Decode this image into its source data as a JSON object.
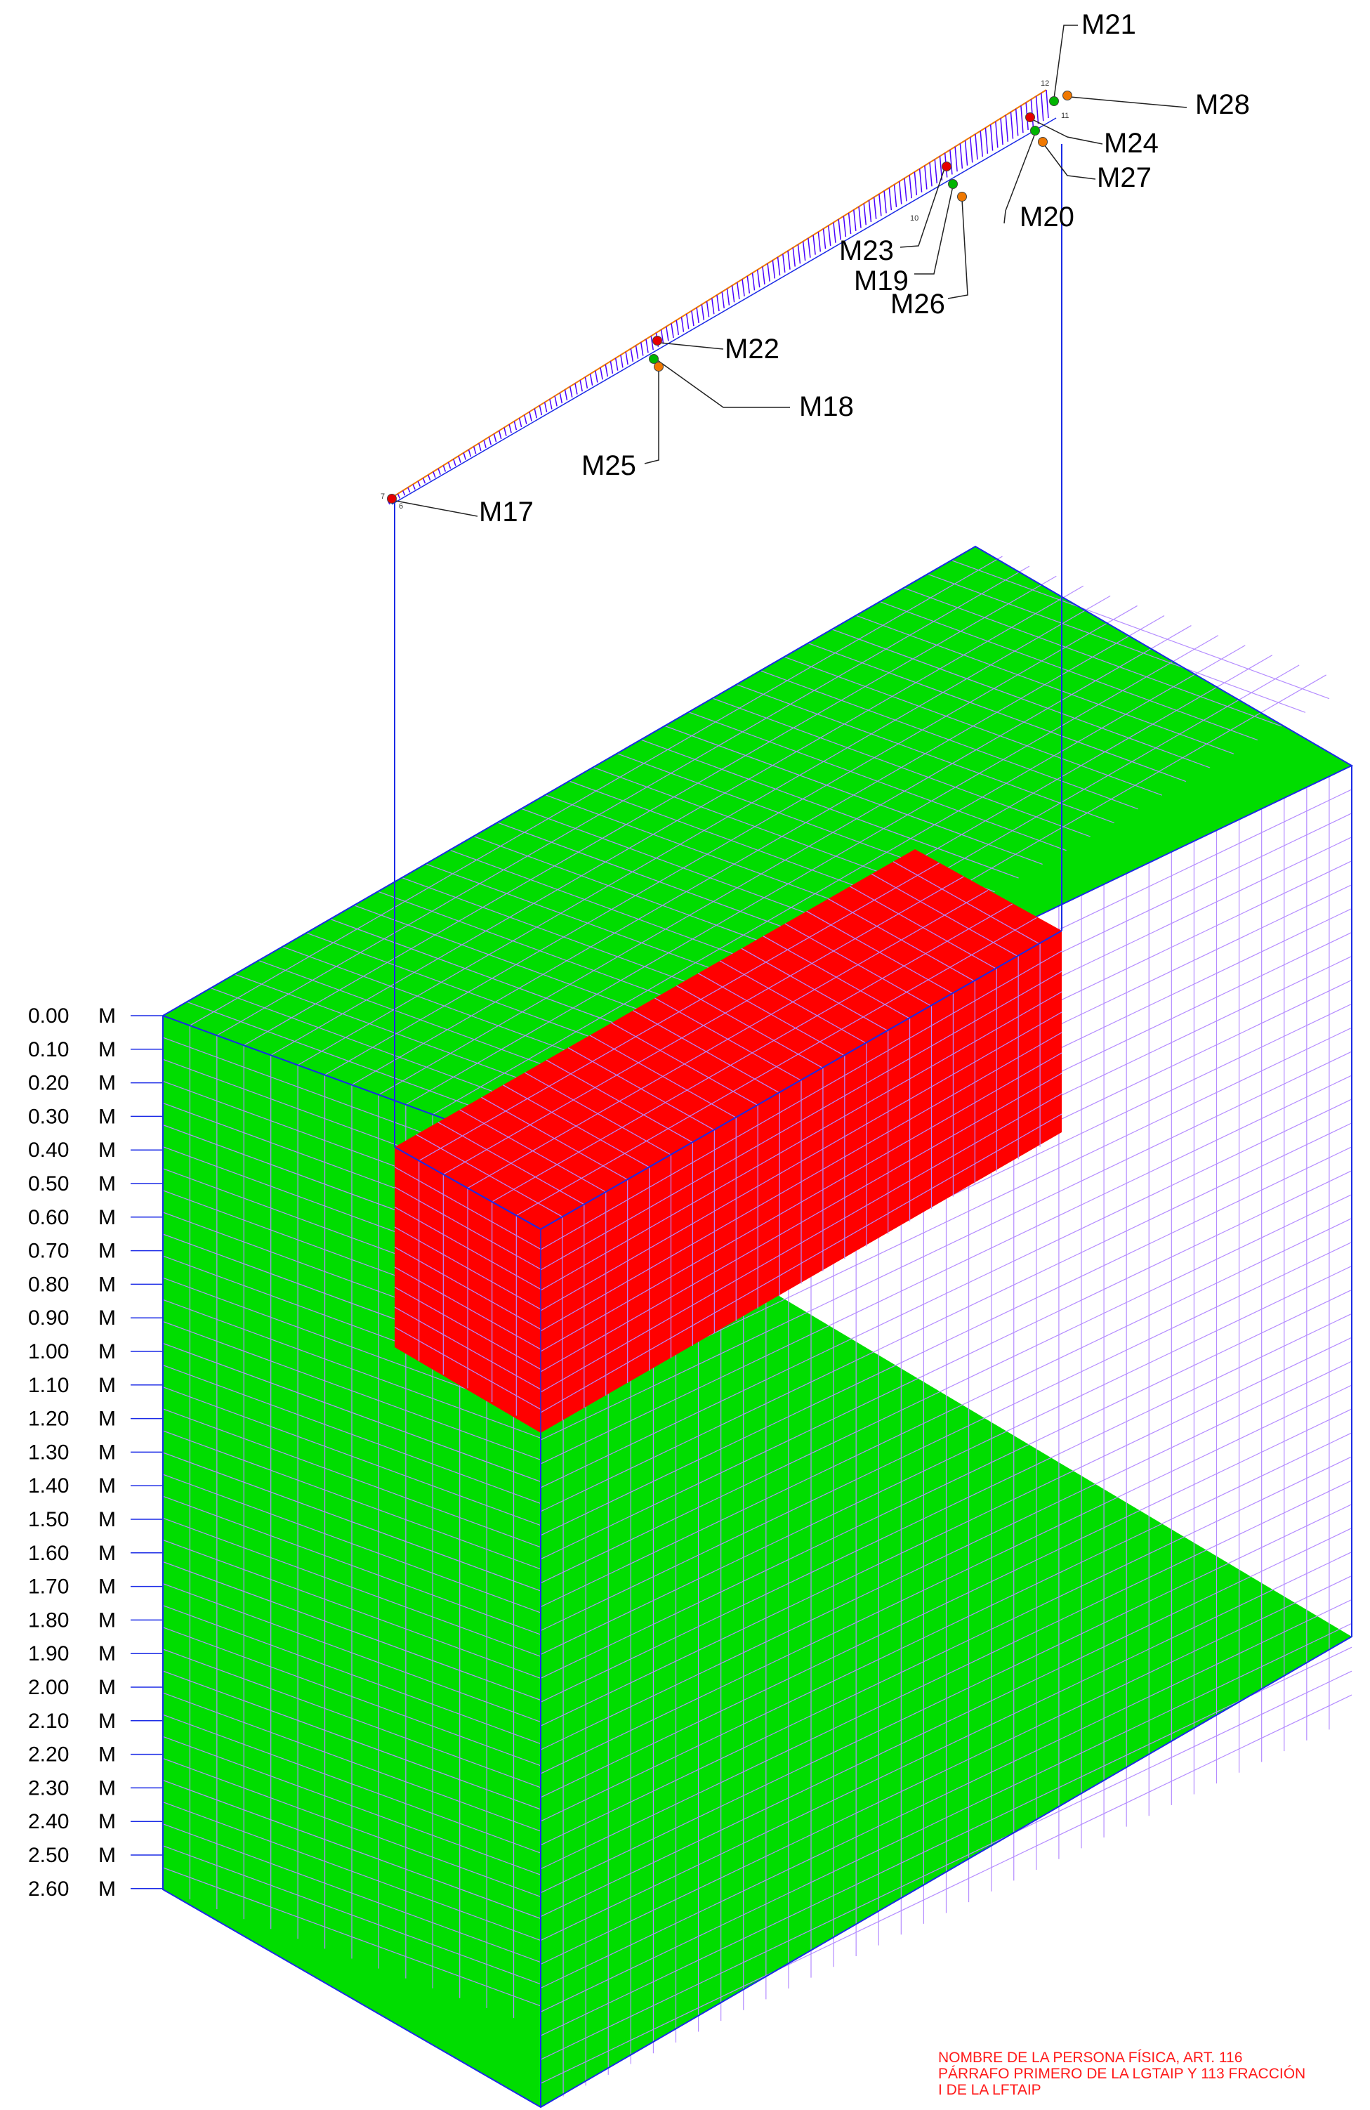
{
  "depth_scale": {
    "unit": "M",
    "labels": [
      "0.00",
      "0.10",
      "0.20",
      "0.30",
      "0.40",
      "0.50",
      "0.60",
      "0.70",
      "0.80",
      "0.90",
      "1.00",
      "1.10",
      "1.20",
      "1.30",
      "1.40",
      "1.50",
      "1.60",
      "1.70",
      "1.80",
      "1.90",
      "2.00",
      "2.10",
      "2.20",
      "2.30",
      "2.40",
      "2.50",
      "2.60"
    ]
  },
  "callouts": [
    "M17",
    "M18",
    "M19",
    "M20",
    "M21",
    "M22",
    "M23",
    "M24",
    "M25",
    "M26",
    "M27",
    "M28"
  ],
  "minor_numbers": [
    "12",
    "11",
    "10",
    "7",
    "6"
  ],
  "colors": {
    "soil": "#00dd00",
    "excavation": "#ff0000",
    "grid": "#b48cff",
    "edge": "#1a2ae6",
    "hatch": "#4a00ff",
    "marker_red": "#e60000",
    "marker_green": "#00b400",
    "marker_orange": "#f07800"
  },
  "redaction_text": "NOMBRE DE LA PERSONA FÍSICA, ART. 116\nPÁRRAFO PRIMERO DE LA LGTAIP Y 113 FRACCIÓN\nI DE LA LFTAIP"
}
